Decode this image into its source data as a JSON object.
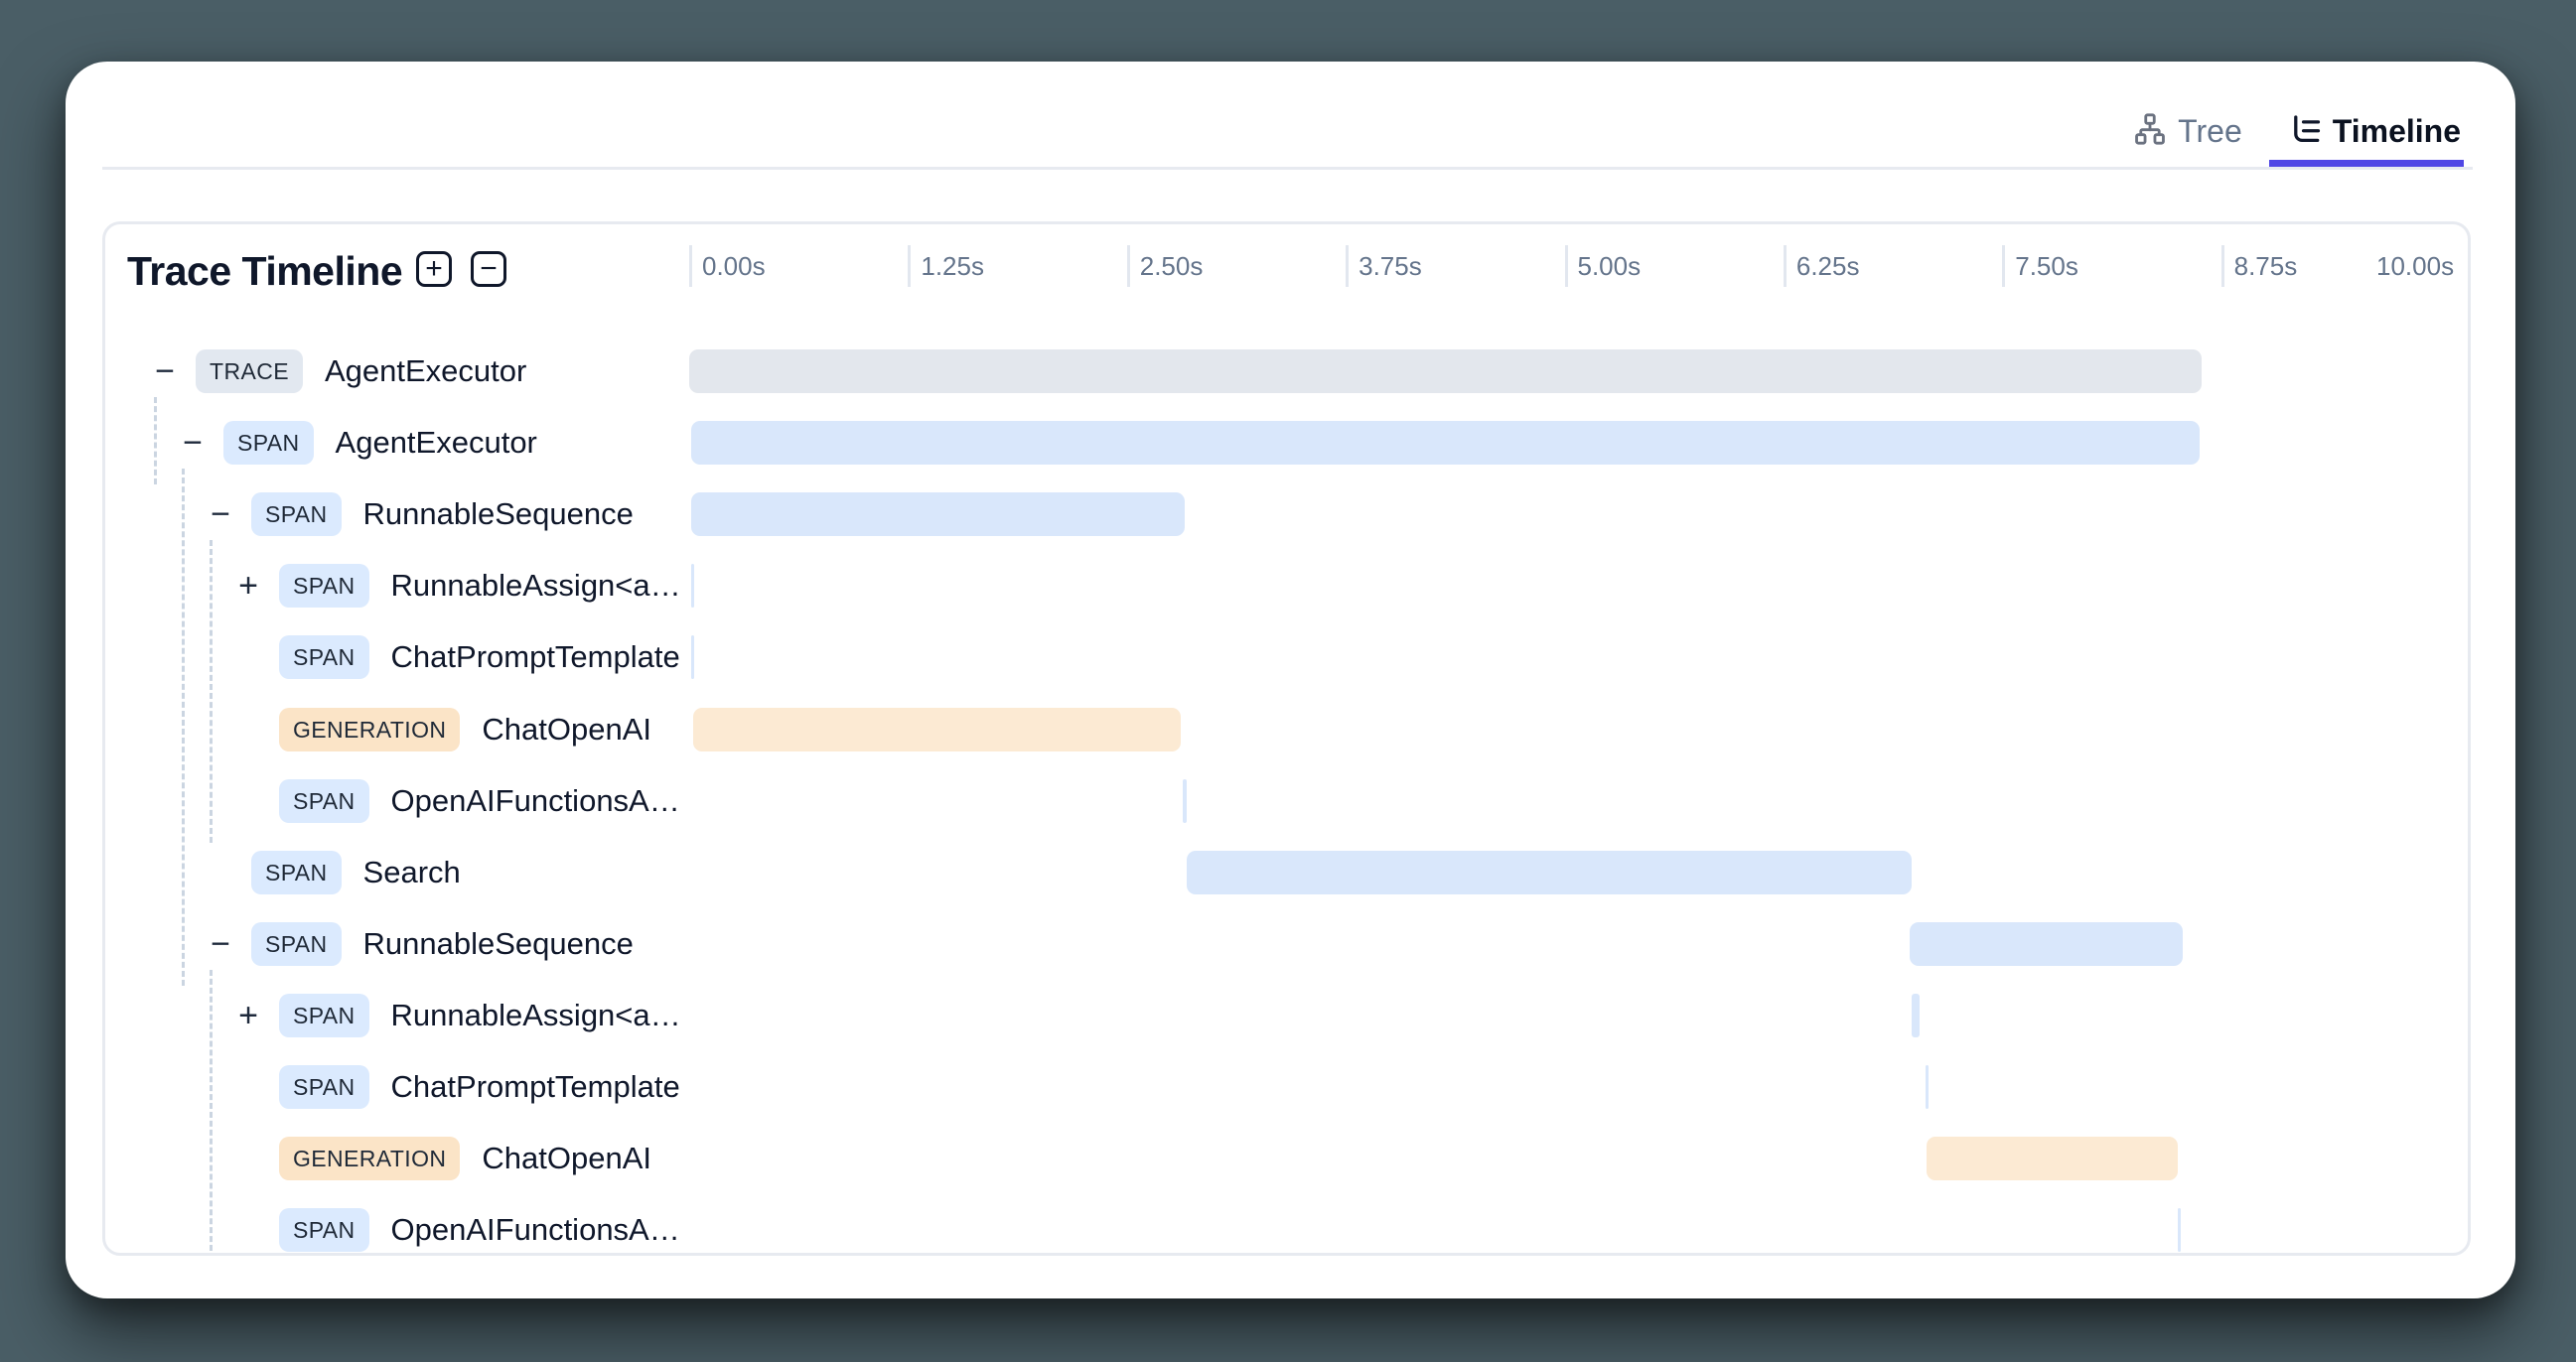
{
  "header": {
    "tabs": [
      {
        "id": "tree",
        "label": "Tree",
        "active": false
      },
      {
        "id": "timeline",
        "label": "Timeline",
        "active": true
      }
    ]
  },
  "panel": {
    "title": "Trace Timeline",
    "zoom_in_label": "+",
    "zoom_out_label": "−"
  },
  "axis": {
    "labels": [
      "0.00s",
      "1.25s",
      "2.50s",
      "3.75s",
      "5.00s",
      "6.25s",
      "7.50s",
      "8.75s",
      "10.00s"
    ],
    "seconds": [
      0,
      1.25,
      2.5,
      3.75,
      5,
      6.25,
      7.5,
      8.75,
      10
    ]
  },
  "colors": {
    "background": "#4a5e66",
    "card": "#ffffff",
    "active_tab_underline": "#4f46e5",
    "inactive_tab_text": "#64748b",
    "active_tab_text": "#0b1220",
    "trace_fill": "#e3e7ed",
    "span_fill": "#d9e7fb",
    "generation_fill": "#fcead3",
    "badge_trace": "#e2e8f0",
    "badge_span": "#dbeafe",
    "badge_generation": "#fbe4c7",
    "guide_dash": "#cbd5e1",
    "axis_text": "#64748b"
  },
  "chart_data": {
    "type": "timeline",
    "unit": "seconds",
    "xlim": [
      0,
      10
    ],
    "ticks": [
      0,
      1.25,
      2.5,
      3.75,
      5,
      6.25,
      7.5,
      8.75,
      10
    ],
    "spans": [
      {
        "kind": "TRACE",
        "name": "AgentExecutor",
        "depth": 0,
        "toggle": "collapse",
        "start": 0.0,
        "end": 8.64
      },
      {
        "kind": "SPAN",
        "name": "AgentExecutor",
        "depth": 1,
        "toggle": "collapse",
        "start": 0.01,
        "end": 8.63
      },
      {
        "kind": "SPAN",
        "name": "RunnableSequence",
        "depth": 2,
        "toggle": "collapse",
        "start": 0.01,
        "end": 2.83
      },
      {
        "kind": "SPAN",
        "name": "RunnableAssign<a…",
        "depth": 3,
        "toggle": "expand",
        "start": 0.01,
        "end": 0.03
      },
      {
        "kind": "SPAN",
        "name": "ChatPromptTemplate",
        "depth": 3,
        "toggle": null,
        "start": 0.01,
        "end": 0.03
      },
      {
        "kind": "GENERATION",
        "name": "ChatOpenAI",
        "depth": 3,
        "toggle": null,
        "start": 0.02,
        "end": 2.81
      },
      {
        "kind": "SPAN",
        "name": "OpenAIFunctionsA…",
        "depth": 3,
        "toggle": null,
        "start": 2.82,
        "end": 2.84
      },
      {
        "kind": "SPAN",
        "name": "Search",
        "depth": 2,
        "toggle": null,
        "start": 2.84,
        "end": 6.98
      },
      {
        "kind": "SPAN",
        "name": "RunnableSequence",
        "depth": 2,
        "toggle": "collapse",
        "start": 6.97,
        "end": 8.53
      },
      {
        "kind": "SPAN",
        "name": "RunnableAssign<a…",
        "depth": 3,
        "toggle": "expand",
        "start": 6.98,
        "end": 7.03
      },
      {
        "kind": "SPAN",
        "name": "ChatPromptTemplate",
        "depth": 3,
        "toggle": null,
        "start": 7.06,
        "end": 7.08
      },
      {
        "kind": "GENERATION",
        "name": "ChatOpenAI",
        "depth": 3,
        "toggle": null,
        "start": 7.07,
        "end": 8.5
      },
      {
        "kind": "SPAN",
        "name": "OpenAIFunctionsA…",
        "depth": 3,
        "toggle": null,
        "start": 8.5,
        "end": 8.52
      }
    ]
  },
  "tree_guides": [
    {
      "parent_index": 0,
      "last_child_index": 1
    },
    {
      "parent_index": 1,
      "last_child_index": 8
    },
    {
      "parent_index": 2,
      "last_child_index": 6
    },
    {
      "parent_index": 8,
      "last_child_index": 12
    }
  ]
}
